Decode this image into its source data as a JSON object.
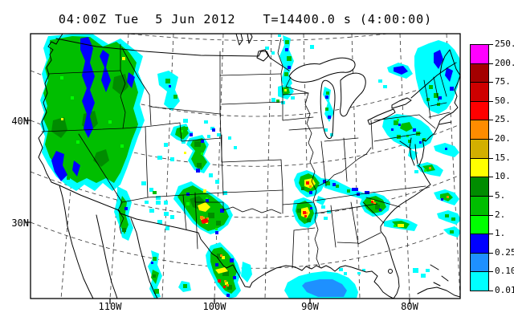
{
  "title": {
    "datetime": "04:00Z Tue  5 Jun 2012",
    "elapsed": "T=14400.0 s (4:00:00)"
  },
  "axes": {
    "lat": [
      "40N",
      "30N"
    ],
    "lon": [
      "110W",
      "100W",
      "90W",
      "80W"
    ]
  },
  "legend": {
    "boundary_labels": [
      "250.",
      "200.",
      "75.",
      "50.",
      "25.",
      "20.",
      "15.",
      "10.",
      "5.",
      "2.",
      "1.",
      "0.25",
      "0.10",
      "0.01"
    ],
    "band_colors": [
      "#FF00FF",
      "#A40000",
      "#CE0000",
      "#FF0000",
      "#FF8C00",
      "#D2AF00",
      "#FFFF00",
      "#008C00",
      "#00BE00",
      "#00FF00",
      "#0000FF",
      "#1E90FF",
      "#00FFFF"
    ]
  },
  "colors": {
    "frame": "#000000",
    "background": "#FFFFFF",
    "graticule": "#333333"
  }
}
